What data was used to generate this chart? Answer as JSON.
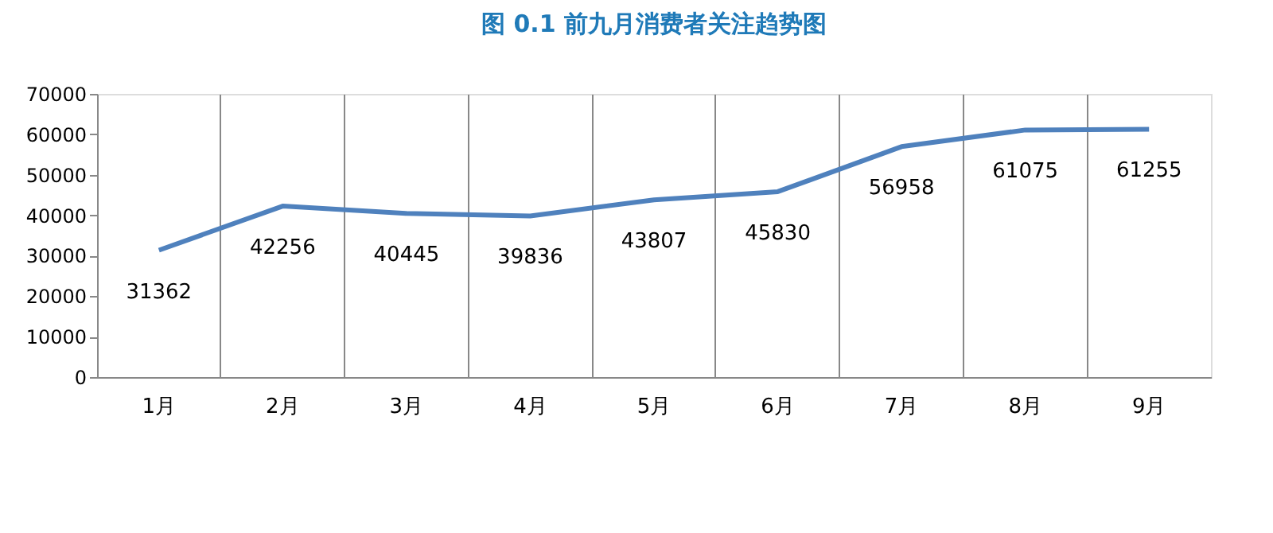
{
  "chart_data": {
    "type": "line",
    "title": "图 0.1 前九月消费者关注趋势图",
    "categories": [
      "1月",
      "2月",
      "3月",
      "4月",
      "5月",
      "6月",
      "7月",
      "8月",
      "9月"
    ],
    "series": [
      {
        "color": "#4f81bd",
        "values": [
          31362,
          42256,
          40445,
          39836,
          43807,
          45830,
          56958,
          61075,
          61255
        ]
      }
    ],
    "ylim": [
      0,
      70000
    ],
    "yticks": [
      0,
      10000,
      20000,
      30000,
      40000,
      50000,
      60000,
      70000
    ],
    "grid": "x",
    "legend": false,
    "data_labels": true,
    "marker": "none",
    "line_style": "solid"
  }
}
